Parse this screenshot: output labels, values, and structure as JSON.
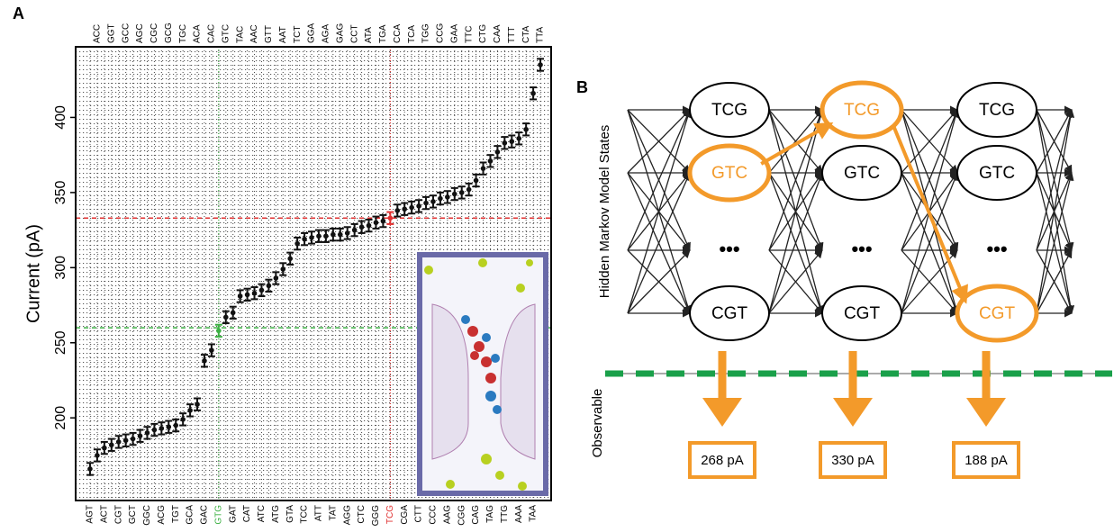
{
  "panel_labels": [
    "A",
    "B"
  ],
  "chart_data": {
    "type": "errorbar",
    "ylabel": "Current (pA)",
    "categories": [
      "AGT",
      "ACC",
      "ACT",
      "GGT",
      "CGT",
      "GCC",
      "GCT",
      "AGC",
      "GGC",
      "CGC",
      "ACG",
      "GCG",
      "TGT",
      "TGC",
      "GCA",
      "ACA",
      "GAC",
      "CAC",
      "GTG",
      "GTC",
      "GAT",
      "TAC",
      "CAT",
      "AAC",
      "ATC",
      "GTT",
      "ATG",
      "AAT",
      "GTA",
      "TCT",
      "TCC",
      "GGA",
      "ATT",
      "AGA",
      "TAT",
      "GAG",
      "AGG",
      "CCT",
      "CTC",
      "ATA",
      "GGG",
      "TGA",
      "TCG",
      "CCA",
      "CGA",
      "TCA",
      "CTT",
      "TGG",
      "CCC",
      "CCG",
      "AAG",
      "GAA",
      "CGG",
      "TTC",
      "CAG",
      "CTG",
      "TAG",
      "CAA",
      "TTG",
      "TTT",
      "AAA",
      "CTA",
      "TAA",
      "TTA"
    ],
    "values": [
      166,
      175,
      180,
      182,
      184,
      185,
      186,
      188,
      190,
      192,
      193,
      194,
      195,
      199,
      205,
      209,
      238,
      245,
      258,
      267,
      270,
      281,
      282,
      283,
      285,
      288,
      293,
      299,
      306,
      316,
      319,
      320,
      321,
      321,
      322,
      322,
      323,
      325,
      327,
      328,
      330,
      331,
      333,
      338,
      339,
      340,
      341,
      343,
      344,
      346,
      347,
      349,
      350,
      352,
      358,
      366,
      371,
      377,
      383,
      384,
      386,
      392,
      416,
      435
    ],
    "error": 4,
    "color": "#111111",
    "highlights": [
      {
        "category": "GTG",
        "color": "#3cb043"
      },
      {
        "category": "TCG",
        "color": "#e03030"
      }
    ],
    "reference_lines": [
      {
        "value": 333,
        "color": "#e03030"
      },
      {
        "value": 260,
        "color": "#3cb043"
      }
    ],
    "ylim": [
      145,
      447
    ],
    "yticks": [
      200,
      250,
      300,
      350,
      400
    ],
    "grid": true
  },
  "diagram": {
    "states_label": "Hidden Markov Model States",
    "observable_label": "Observable",
    "ellipsis": "•••",
    "columns": [
      {
        "states": [
          "TCG",
          "GTC",
          "CGT"
        ],
        "highlight": 1,
        "observation": "268 pA"
      },
      {
        "states": [
          "TCG",
          "GTC",
          "CGT"
        ],
        "highlight": 0,
        "observation": "330 pA"
      },
      {
        "states": [
          "TCG",
          "GTC",
          "CGT"
        ],
        "highlight": 2,
        "observation": "188 pA"
      }
    ],
    "highlight_color": "#f39a2a"
  }
}
